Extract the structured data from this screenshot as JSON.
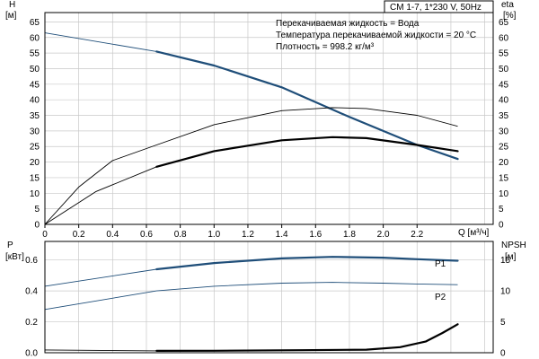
{
  "header": {
    "title": "CM 1-7, 1*230 V, 50Hz"
  },
  "notes": [
    "Перекачиваемая жидкость = Вода",
    "Температура перекачиваемой жидкости = 20 °C",
    "Плотность = 998.2 кг/м³"
  ],
  "colors": {
    "blue": "#1f4e79",
    "black": "#000000",
    "grid": "#c8c8c8",
    "frame": "#000000"
  },
  "chart_data": [
    {
      "type": "line",
      "panel": "top",
      "xlabel": "Q [м³/ч]",
      "ylabel_left": "H",
      "ylabel_left_unit": "[м]",
      "ylabel_right": "eta",
      "ylabel_right_unit": "[%]",
      "xlim": [
        0,
        2.65
      ],
      "ylim_left": [
        0,
        68
      ],
      "ylim_right": [
        0,
        68
      ],
      "x_ticks": [
        "0",
        "0.2",
        "0.4",
        "0.6",
        "0.8",
        "1.0",
        "1.2",
        "1.4",
        "1.6",
        "1.8",
        "2.0",
        "2.2"
      ],
      "x_tick_values": [
        0,
        0.2,
        0.4,
        0.6,
        0.8,
        1.0,
        1.2,
        1.4,
        1.6,
        1.8,
        2.0,
        2.2
      ],
      "y_ticks_left": [
        "0",
        "5",
        "10",
        "15",
        "20",
        "25",
        "30",
        "35",
        "40",
        "45",
        "50",
        "55",
        "60",
        "65"
      ],
      "y_ticks_right": [
        "0",
        "5",
        "10",
        "15",
        "20",
        "25",
        "30",
        "35",
        "40",
        "45",
        "50",
        "55",
        "60",
        "65"
      ],
      "y_tick_values": [
        0,
        5,
        10,
        15,
        20,
        25,
        30,
        35,
        40,
        45,
        50,
        55,
        60,
        65
      ],
      "grid": true,
      "series": [
        {
          "color": "blue",
          "role": "H",
          "x": [
            0,
            0.66,
            1.0,
            1.4,
            1.8,
            2.2,
            2.44
          ],
          "y": [
            61.5,
            55.5,
            51,
            44,
            34.5,
            25.5,
            21
          ],
          "bold_from": 0.66
        },
        {
          "color": "black",
          "role": "eta",
          "x": [
            0,
            0.2,
            0.4,
            0.66,
            1.0,
            1.4,
            1.7,
            1.9,
            2.2,
            2.44
          ],
          "y": [
            0,
            12,
            20.5,
            25.5,
            32,
            36.5,
            37.5,
            37.2,
            35,
            31.5
          ],
          "bold_from": 99
        },
        {
          "color": "black",
          "role": "eta",
          "x": [
            0,
            0.3,
            0.66,
            1.0,
            1.4,
            1.7,
            1.9,
            2.2,
            2.44
          ],
          "y": [
            0,
            10.5,
            18.5,
            23.5,
            27,
            28,
            27.7,
            25.5,
            23.5
          ],
          "bold_from": 0.66
        }
      ]
    },
    {
      "type": "line",
      "panel": "bottom",
      "ylabel_left": "P",
      "ylabel_left_unit": "[кВт]",
      "ylabel_right": "NPSH",
      "ylabel_right_unit": "[м]",
      "xlim": [
        0,
        2.65
      ],
      "ylim_left": [
        0,
        0.72
      ],
      "ylim_right": [
        0,
        18
      ],
      "y_ticks_left": [
        "0.0",
        "0.2",
        "0.4",
        "0.6"
      ],
      "y_tick_values_left": [
        0,
        0.2,
        0.4,
        0.6
      ],
      "y_ticks_right": [
        "0",
        "5",
        "10",
        "15"
      ],
      "y_tick_values_right": [
        0,
        5,
        10,
        15
      ],
      "grid": true,
      "series": [
        {
          "name": "P1",
          "color": "blue",
          "axis": "left",
          "x": [
            0,
            0.66,
            1.0,
            1.4,
            1.7,
            2.0,
            2.2,
            2.44
          ],
          "y": [
            0.43,
            0.54,
            0.58,
            0.61,
            0.62,
            0.615,
            0.605,
            0.595
          ],
          "bold_from": 0.66
        },
        {
          "name": "P2",
          "color": "blue",
          "axis": "left",
          "x": [
            0,
            0.66,
            1.0,
            1.4,
            1.7,
            2.0,
            2.2,
            2.44
          ],
          "y": [
            0.28,
            0.4,
            0.43,
            0.45,
            0.455,
            0.45,
            0.445,
            0.44
          ],
          "bold_from": 99
        },
        {
          "color": "black",
          "axis": "right",
          "x": [
            0,
            0.66,
            1.0,
            1.5,
            1.9,
            2.1,
            2.25,
            2.35,
            2.44
          ],
          "y": [
            0.45,
            0.3,
            0.32,
            0.4,
            0.5,
            0.9,
            1.8,
            3.2,
            4.6
          ],
          "bold_from": 0.66
        }
      ]
    }
  ]
}
